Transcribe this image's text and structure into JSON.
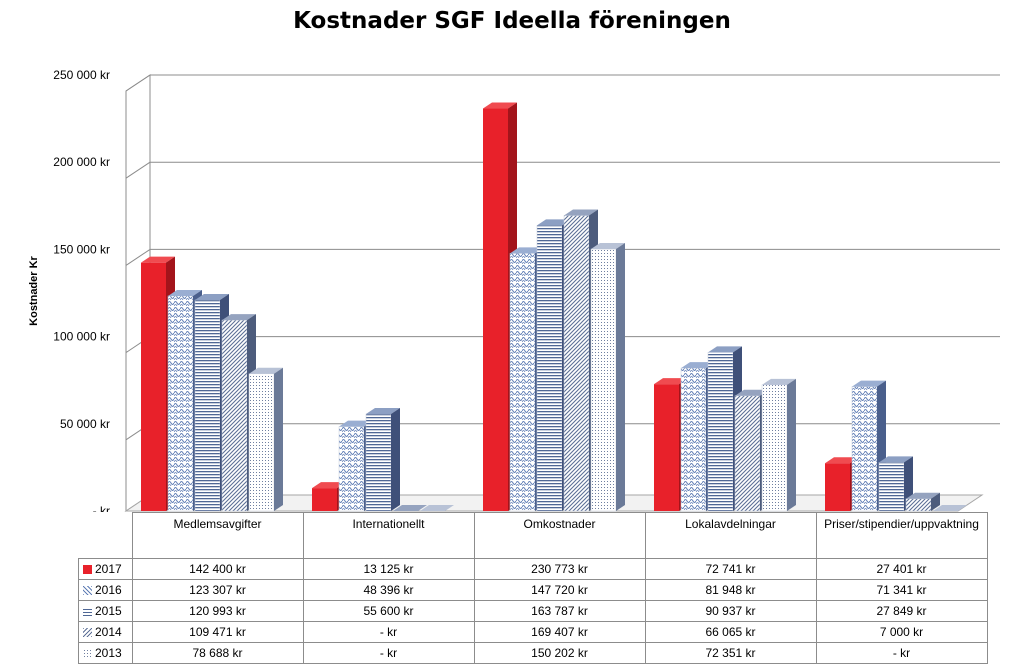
{
  "chart_data": {
    "type": "bar",
    "title": "Kostnader SGF Ideella föreningen",
    "ylabel": "Kostnader Kr",
    "xlabel": "",
    "ylim": [
      0,
      250000
    ],
    "ytick_labels": [
      "-  kr",
      "50 000 kr",
      "100 000 kr",
      "150 000 kr",
      "200 000 kr",
      "250 000 kr"
    ],
    "grid": true,
    "legend": "table below chart",
    "categories": [
      "Medlemsavgifter",
      "Internationellt",
      "Omkostnader",
      "Lokalavdelningar",
      "Priser/stipendier/uppvaktning"
    ],
    "series": [
      {
        "name": "2017",
        "values": [
          142400,
          13125,
          230773,
          72741,
          27401
        ],
        "labels": [
          "142 400 kr",
          "13 125 kr",
          "230 773 kr",
          "72 741 kr",
          "27 401 kr"
        ],
        "color": "#e8212a"
      },
      {
        "name": "2016",
        "values": [
          123307,
          48396,
          147720,
          81948,
          71341
        ],
        "labels": [
          "123 307 kr",
          "48 396 kr",
          "147 720 kr",
          "81 948 kr",
          "71 341 kr"
        ],
        "color": "#6f89b8"
      },
      {
        "name": "2015",
        "values": [
          120993,
          55600,
          163787,
          90937,
          27849
        ],
        "labels": [
          "120 993 kr",
          "55 600 kr",
          "163 787 kr",
          "90 937 kr",
          "27 849 kr"
        ],
        "color": "#5a6f95"
      },
      {
        "name": "2014",
        "values": [
          109471,
          0,
          169407,
          66065,
          7000
        ],
        "labels": [
          "109 471 kr",
          "-   kr",
          "169 407 kr",
          "66 065 kr",
          "7 000 kr"
        ],
        "color": "#6b7c9c"
      },
      {
        "name": "2013",
        "values": [
          78688,
          0,
          150202,
          72351,
          0
        ],
        "labels": [
          "78 688 kr",
          "-   kr",
          "150 202 kr",
          "72 351 kr",
          "-   kr"
        ],
        "color": "#8a9ab8"
      }
    ]
  }
}
